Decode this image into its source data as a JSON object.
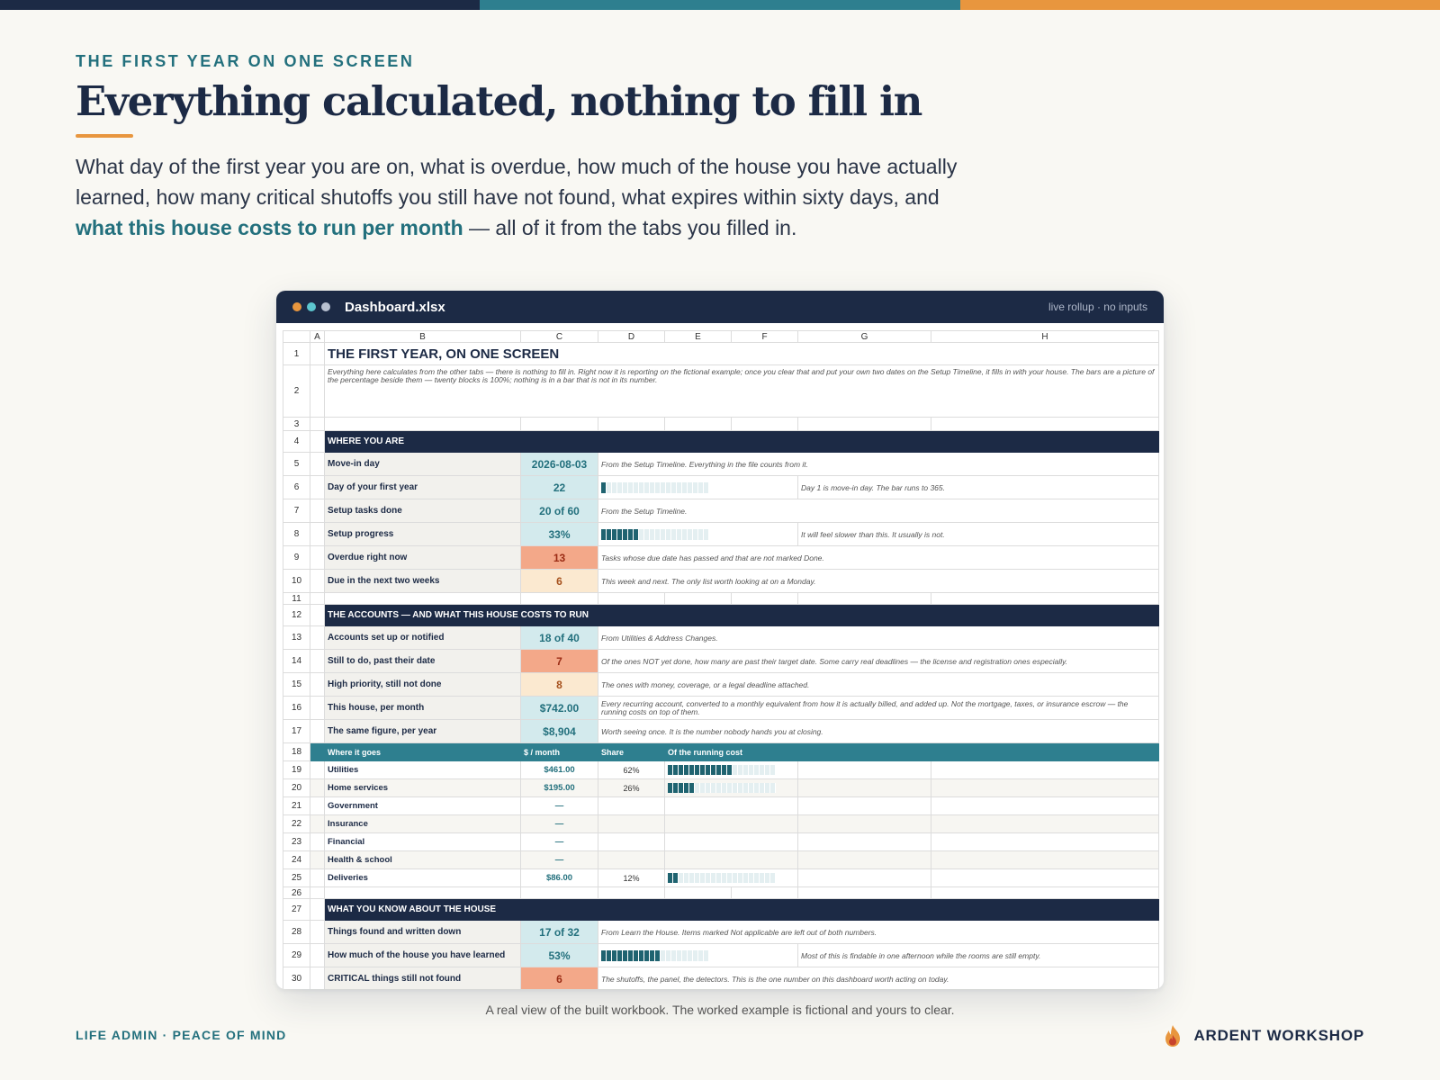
{
  "colors": {
    "navy": "#1c2a45",
    "teal": "#2e7f8f",
    "orange": "#e8963e",
    "alert": "#f3a889"
  },
  "header": {
    "eyebrow": "THE FIRST YEAR ON ONE SCREEN",
    "title": "Everything calculated, nothing to fill in",
    "intro_before": "What day of the first year you are on, what is overdue, how much of the house you have actually learned, how many critical shutoffs you still have not found, what expires within sixty days, and ",
    "intro_highlight": "what this house costs to run per month",
    "intro_after": " — all of it from the tabs you filled in."
  },
  "window": {
    "filename": "Dashboard.xlsx",
    "meta": "live rollup · no inputs",
    "dots": [
      "orange-dot",
      "teal-dot",
      "grey-dot"
    ]
  },
  "sheet": {
    "columns": [
      "A",
      "B",
      "C",
      "D",
      "E",
      "F",
      "G",
      "H"
    ],
    "row_numbers": [
      "1",
      "2",
      "3",
      "4",
      "5",
      "6",
      "7",
      "8",
      "9",
      "10",
      "11",
      "12",
      "13",
      "14",
      "15",
      "16",
      "17",
      "18",
      "19",
      "20",
      "21",
      "22",
      "23",
      "24",
      "25",
      "26",
      "27",
      "28",
      "29",
      "30"
    ],
    "title": "THE FIRST YEAR, ON ONE SCREEN",
    "description": "Everything here calculates from the other tabs — there is nothing to fill in. Right now it is reporting on the fictional example; once you clear that and put your own two dates on the Setup Timeline, it fills in with your house. The bars are a picture of the percentage beside them — twenty blocks is 100%; nothing is in a bar that is not in its number.",
    "section_where": "WHERE YOU ARE",
    "where_rows": [
      {
        "label": "Move-in day",
        "value": "2026-08-03",
        "note": "From the Setup Timeline. Everything in the file counts from it."
      },
      {
        "label": "Day of your first year",
        "value": "22",
        "note": "Day 1 is move-in day. The bar runs to 365.",
        "bar": 0.06
      },
      {
        "label": "Setup tasks done",
        "value": "20 of 60",
        "note": "From the Setup Timeline."
      },
      {
        "label": "Setup progress",
        "value": "33%",
        "note": "It will feel slower than this. It usually is not.",
        "bar": 0.33
      },
      {
        "label": "Overdue right now",
        "value": "13",
        "note": "Tasks whose due date has passed and that are not marked Done."
      },
      {
        "label": "Due in the next two weeks",
        "value": "6",
        "note": "This week and next. The only list worth looking at on a Monday."
      }
    ],
    "section_accounts": "THE ACCOUNTS — AND WHAT THIS HOUSE COSTS TO RUN",
    "account_rows": [
      {
        "label": "Accounts set up or notified",
        "value": "18 of 40",
        "note": "From Utilities & Address Changes."
      },
      {
        "label": "Still to do, past their date",
        "value": "7",
        "note": "Of the ones NOT yet done, how many are past their target date. Some carry real deadlines — the license and registration ones especially."
      },
      {
        "label": "High priority, still not done",
        "value": "8",
        "note": "The ones with money, coverage, or a legal deadline attached."
      },
      {
        "label": "This house, per month",
        "value": "$742.00",
        "note": "Every recurring account, converted to a monthly equivalent from how it is actually billed, and added up. Not the mortgage, taxes, or insurance escrow — the running costs on top of them."
      },
      {
        "label": "The same figure, per year",
        "value": "$8,904",
        "note": "Worth seeing once. It is the number nobody hands you at closing."
      }
    ],
    "breakdown_header": {
      "where": "Where it goes",
      "month": "$ / month",
      "share": "Share",
      "of_cost": "Of the running cost"
    },
    "breakdown": [
      {
        "category": "Utilities",
        "month": "$461.00",
        "share": "62%",
        "bar": 0.62
      },
      {
        "category": "Home services",
        "month": "$195.00",
        "share": "26%",
        "bar": 0.26
      },
      {
        "category": "Government",
        "month": "—",
        "share": ""
      },
      {
        "category": "Insurance",
        "month": "—",
        "share": ""
      },
      {
        "category": "Financial",
        "month": "—",
        "share": ""
      },
      {
        "category": "Health & school",
        "month": "—",
        "share": ""
      },
      {
        "category": "Deliveries",
        "month": "$86.00",
        "share": "12%",
        "bar": 0.12
      }
    ],
    "section_know": "WHAT YOU KNOW ABOUT THE HOUSE",
    "know_rows": [
      {
        "label": "Things found and written down",
        "value": "17 of 32",
        "note": "From Learn the House. Items marked Not applicable are left out of both numbers."
      },
      {
        "label": "How much of the house you have learned",
        "value": "53%",
        "note": "Most of this is findable in one afternoon while the rooms are still empty.",
        "bar": 0.53
      },
      {
        "label": "CRITICAL things still not found",
        "value": "6",
        "note": "The shutoffs, the panel, the detectors. This is the one number on this dashboard worth acting on today."
      }
    ]
  },
  "caption": "A real view of the built workbook. The worked example is fictional and yours to clear.",
  "footer": {
    "left": "LIFE ADMIN · PEACE OF MIND",
    "brand": "ARDENT WORKSHOP",
    "brand_icon": "flame-icon"
  }
}
